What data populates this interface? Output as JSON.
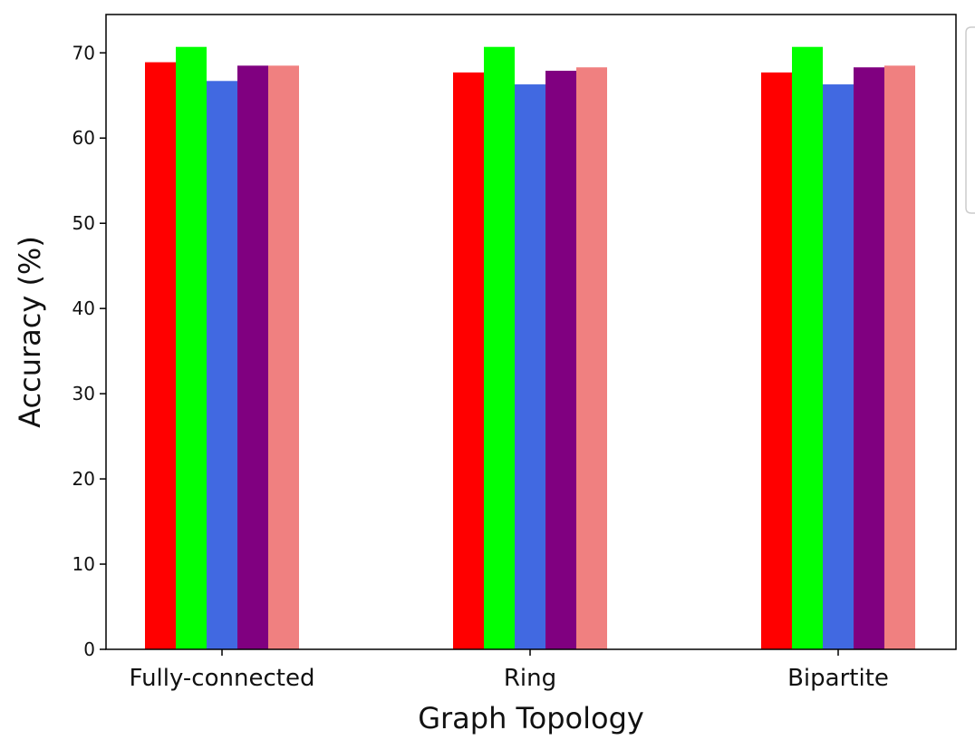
{
  "chart_data": {
    "type": "bar",
    "title": "",
    "xlabel": "Graph Topology",
    "ylabel": "Accuracy (%)",
    "categories": [
      "Fully-connected",
      "Ring",
      "Bipartite"
    ],
    "ylim": [
      0,
      74.5
    ],
    "yticks": [
      0,
      10,
      20,
      30,
      40,
      50,
      60,
      70
    ],
    "grid": false,
    "legend_position": "right (cropped)",
    "series": [
      {
        "color": "#ff0000",
        "values": [
          68.9,
          67.7,
          67.7
        ]
      },
      {
        "color": "#00ff00",
        "values": [
          70.7,
          70.7,
          70.7
        ]
      },
      {
        "color": "#4169e1",
        "values": [
          66.7,
          66.3,
          66.3
        ]
      },
      {
        "color": "#800080",
        "values": [
          68.5,
          67.9,
          68.3
        ]
      },
      {
        "color": "#f08080",
        "values": [
          68.5,
          68.3,
          68.5
        ]
      }
    ]
  }
}
